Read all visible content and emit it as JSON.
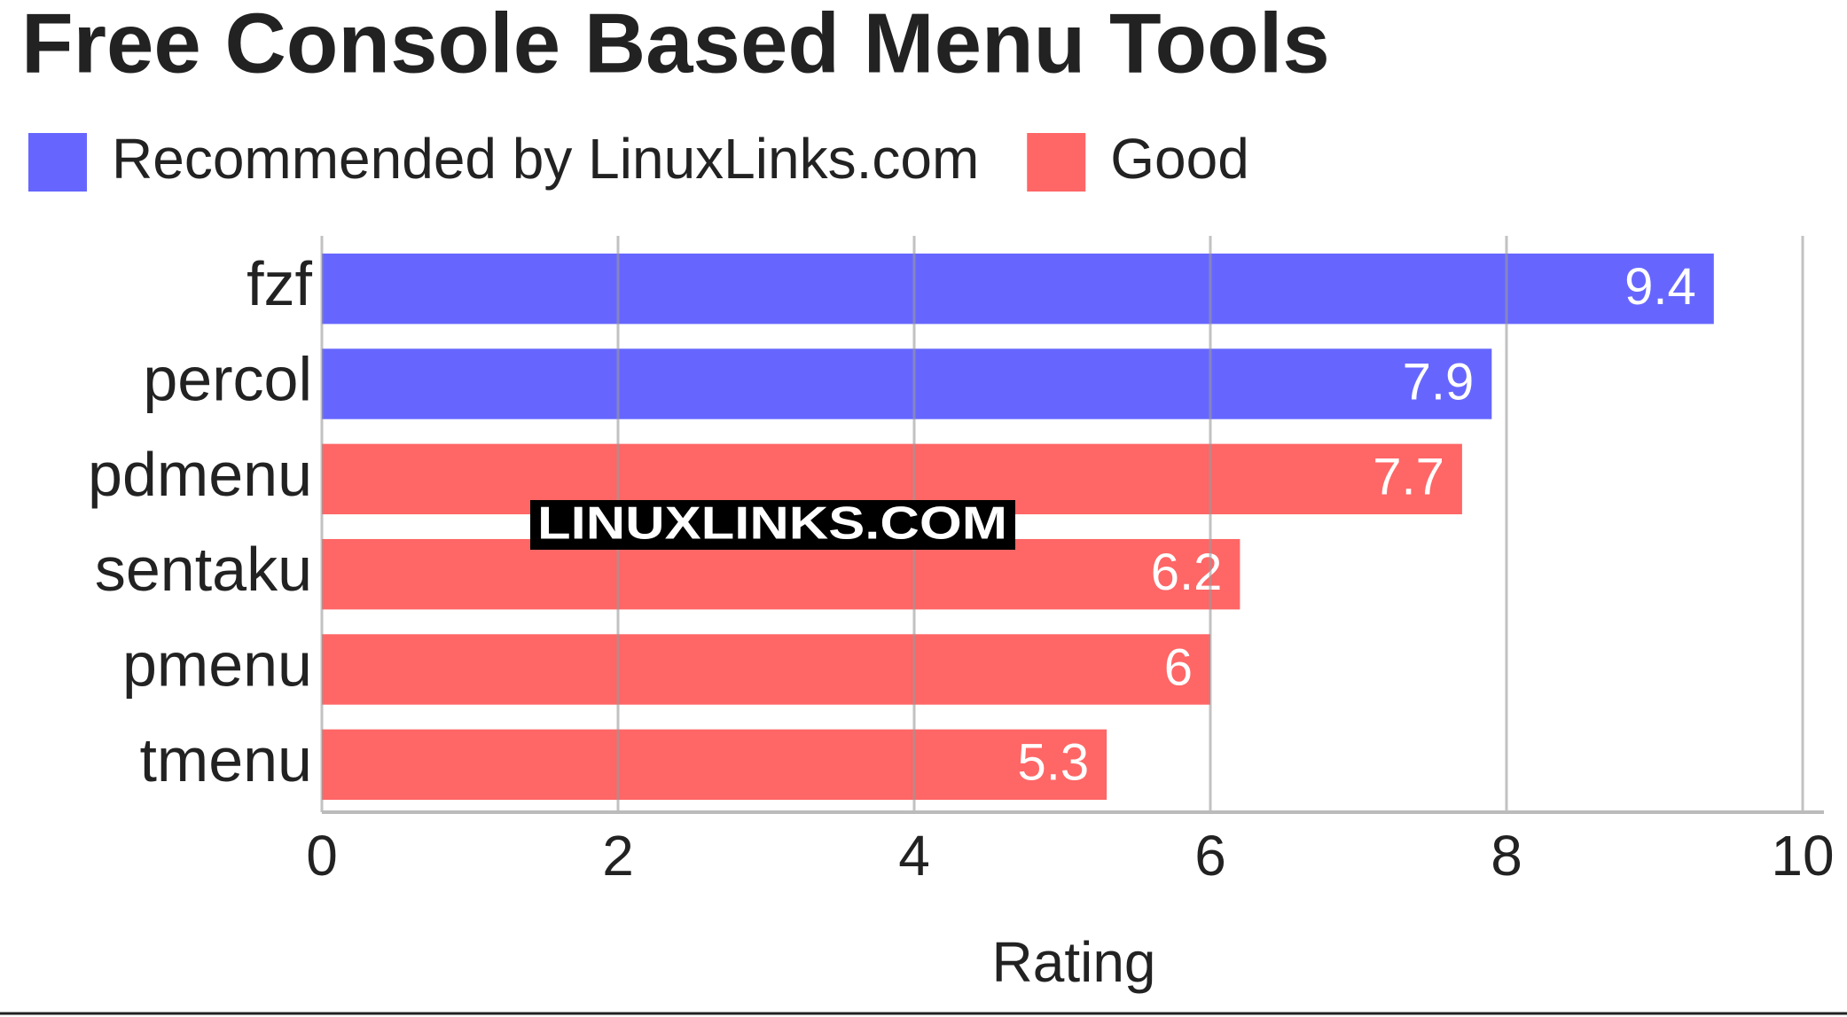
{
  "chart_data": {
    "type": "hbar",
    "title": "Free Console Based Menu Tools",
    "categories": [
      "fzf",
      "percol",
      "pdmenu",
      "sentaku",
      "pmenu",
      "tmenu"
    ],
    "series": [
      {
        "name": "Recommended by LinuxLinks.com",
        "color": "#6666ff",
        "values": [
          9.4,
          7.9,
          null,
          null,
          null,
          null
        ]
      },
      {
        "name": "Good",
        "color": "#ff6666",
        "values": [
          null,
          null,
          7.7,
          6.2,
          6,
          5.3
        ]
      }
    ],
    "xlim": [
      0,
      10
    ],
    "xticks": [
      0,
      2,
      4,
      6,
      8,
      10
    ],
    "x_label": "Rating",
    "watermark": "LINUXLINKS.COM",
    "grid": true
  }
}
